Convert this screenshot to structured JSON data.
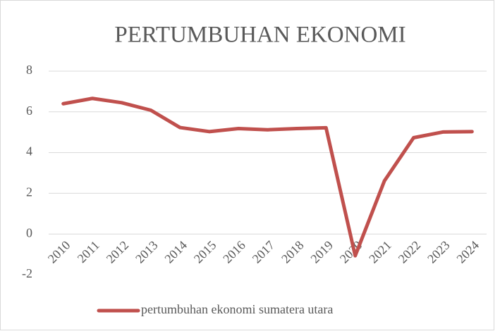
{
  "chart_data": {
    "type": "line",
    "title": "PERTUMBUHAN EKONOMI",
    "categories": [
      "2010",
      "2011",
      "2012",
      "2013",
      "2014",
      "2015",
      "2016",
      "2017",
      "2018",
      "2019",
      "2020",
      "2021",
      "2022",
      "2023",
      "2024"
    ],
    "series": [
      {
        "name": "pertumbuhan ekonomi sumatera utara",
        "color": "#c0504d",
        "values": [
          6.4,
          6.66,
          6.45,
          6.08,
          5.23,
          5.03,
          5.18,
          5.12,
          5.18,
          5.22,
          -1.07,
          2.61,
          4.73,
          5.01,
          5.03
        ]
      }
    ],
    "ylim": [
      -2,
      8
    ],
    "yticks": [
      -2,
      0,
      2,
      4,
      6,
      8
    ],
    "grid": true,
    "legend": "bottom"
  }
}
